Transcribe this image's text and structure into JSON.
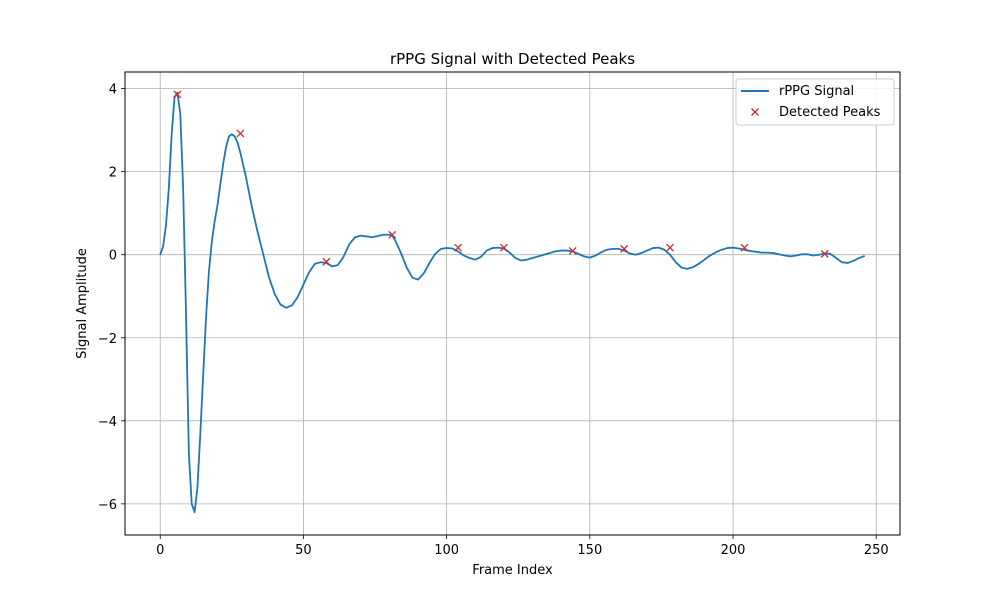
{
  "chart_data": {
    "type": "line",
    "title": "rPPG Signal with Detected Peaks",
    "xlabel": "Frame Index",
    "ylabel": "Signal Amplitude",
    "xlim": [
      -12.3,
      258.3
    ],
    "ylim": [
      -6.75,
      4.4
    ],
    "xticks": [
      0,
      50,
      100,
      150,
      200,
      250
    ],
    "yticks": [
      4,
      2,
      0,
      -2,
      -4,
      -6
    ],
    "yticks_labels": [
      "4",
      "2",
      "0",
      "−2",
      "−4",
      "−6"
    ],
    "grid": true,
    "legend_position": "top-right",
    "colors": {
      "signal": "#1f77b4",
      "peaks": "#d62728",
      "grid": "#b0b0b0"
    },
    "series": [
      {
        "name": "rPPG Signal",
        "kind": "line",
        "x": [
          0,
          1,
          2,
          3,
          4,
          5,
          6,
          7,
          8,
          9,
          10,
          11,
          12,
          13,
          14,
          15,
          16,
          17,
          18,
          19,
          20,
          21,
          22,
          23,
          24,
          25,
          26,
          27,
          28,
          29,
          30,
          32,
          34,
          36,
          38,
          40,
          42,
          44,
          46,
          48,
          50,
          52,
          54,
          56,
          58,
          60,
          62,
          64,
          66,
          68,
          70,
          72,
          74,
          76,
          78,
          80,
          81,
          82,
          84,
          86,
          88,
          90,
          92,
          94,
          96,
          98,
          100,
          102,
          104,
          106,
          108,
          110,
          112,
          114,
          116,
          118,
          120,
          122,
          124,
          126,
          128,
          130,
          132,
          134,
          136,
          138,
          140,
          142,
          144,
          146,
          148,
          150,
          152,
          154,
          156,
          158,
          160,
          162,
          164,
          166,
          168,
          170,
          172,
          174,
          176,
          178,
          180,
          182,
          184,
          186,
          188,
          190,
          192,
          194,
          196,
          198,
          200,
          202,
          204,
          206,
          208,
          210,
          212,
          214,
          216,
          218,
          220,
          222,
          224,
          226,
          228,
          230,
          232,
          234,
          236,
          238,
          240,
          242,
          244,
          246
        ],
        "y": [
          0.0,
          0.2,
          0.7,
          1.6,
          2.9,
          3.8,
          3.9,
          3.4,
          1.6,
          -1.4,
          -4.8,
          -6.0,
          -6.2,
          -5.6,
          -4.3,
          -2.9,
          -1.5,
          -0.4,
          0.3,
          0.8,
          1.2,
          1.7,
          2.2,
          2.6,
          2.85,
          2.9,
          2.85,
          2.7,
          2.45,
          2.15,
          1.85,
          1.15,
          0.55,
          0.0,
          -0.55,
          -0.95,
          -1.2,
          -1.28,
          -1.22,
          -1.02,
          -0.72,
          -0.42,
          -0.22,
          -0.18,
          -0.2,
          -0.28,
          -0.25,
          -0.05,
          0.25,
          0.42,
          0.46,
          0.44,
          0.42,
          0.45,
          0.48,
          0.48,
          0.46,
          0.35,
          0.05,
          -0.3,
          -0.55,
          -0.6,
          -0.45,
          -0.2,
          0.02,
          0.14,
          0.16,
          0.15,
          0.08,
          -0.02,
          -0.08,
          -0.12,
          -0.05,
          0.1,
          0.16,
          0.17,
          0.15,
          0.05,
          -0.08,
          -0.14,
          -0.12,
          -0.08,
          -0.04,
          0.0,
          0.04,
          0.08,
          0.1,
          0.1,
          0.08,
          0.02,
          -0.04,
          -0.07,
          -0.02,
          0.06,
          0.12,
          0.14,
          0.14,
          0.1,
          0.03,
          0.0,
          0.04,
          0.1,
          0.16,
          0.17,
          0.12,
          0.0,
          -0.18,
          -0.31,
          -0.34,
          -0.3,
          -0.22,
          -0.12,
          -0.02,
          0.06,
          0.12,
          0.16,
          0.17,
          0.15,
          0.12,
          0.09,
          0.07,
          0.05,
          0.05,
          0.04,
          0.01,
          -0.02,
          -0.04,
          -0.02,
          0.01,
          0.01,
          -0.02,
          0.0,
          0.03,
          0.02,
          -0.08,
          -0.18,
          -0.2,
          -0.15,
          -0.08,
          -0.03
        ]
      },
      {
        "name": "Detected Peaks",
        "kind": "scatter",
        "marker": "x",
        "x": [
          6,
          28,
          58,
          81,
          104,
          120,
          144,
          162,
          178,
          204,
          232
        ],
        "y": [
          3.86,
          2.92,
          -0.17,
          0.48,
          0.17,
          0.17,
          0.09,
          0.14,
          0.17,
          0.17,
          0.02
        ]
      }
    ]
  }
}
